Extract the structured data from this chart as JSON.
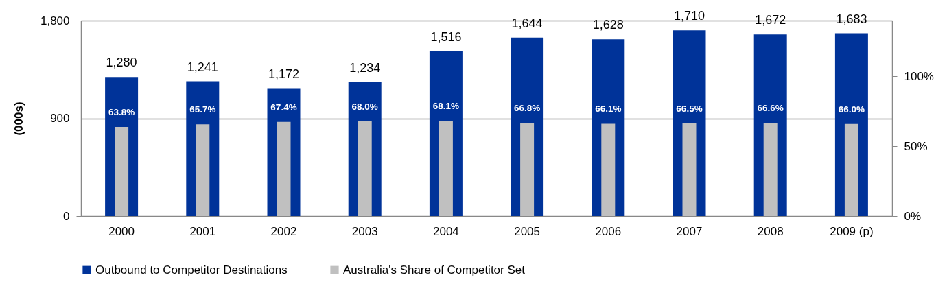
{
  "chart_data": {
    "type": "bar",
    "ylabel": "(000s)",
    "categories": [
      "2000",
      "2001",
      "2002",
      "2003",
      "2004",
      "2005",
      "2006",
      "2007",
      "2008",
      "2009 (p)"
    ],
    "series": [
      {
        "name": "Outbound to Competitor Destinations",
        "color": "#003399",
        "values": [
          1280,
          1241,
          1172,
          1234,
          1516,
          1644,
          1628,
          1710,
          1672,
          1683
        ],
        "value_labels": [
          "1,280",
          "1,241",
          "1,172",
          "1,234",
          "1,516",
          "1,644",
          "1,628",
          "1,710",
          "1,672",
          "1,683"
        ]
      },
      {
        "name": "Australia's Share of Competitor Set",
        "color": "#c0c0c0",
        "axis": "y2",
        "values": [
          63.8,
          65.7,
          67.4,
          68.0,
          68.1,
          66.8,
          66.1,
          66.5,
          66.6,
          66.0
        ],
        "value_labels": [
          "63.8%",
          "65.7%",
          "67.4%",
          "68.0%",
          "68.1%",
          "66.8%",
          "66.1%",
          "66.5%",
          "66.6%",
          "66.0%"
        ]
      }
    ],
    "ylim": [
      0,
      1800
    ],
    "yticks": [
      {
        "value": 0,
        "label": "0"
      },
      {
        "value": 900,
        "label": "900"
      },
      {
        "value": 1800,
        "label": "1,800"
      }
    ],
    "y2lim": [
      0,
      140
    ],
    "y2ticks": [
      {
        "value": 0,
        "label": "0%"
      },
      {
        "value": 50,
        "label": "50%"
      },
      {
        "value": 100,
        "label": "100%"
      }
    ],
    "grid": "y",
    "legend": "bottom"
  }
}
